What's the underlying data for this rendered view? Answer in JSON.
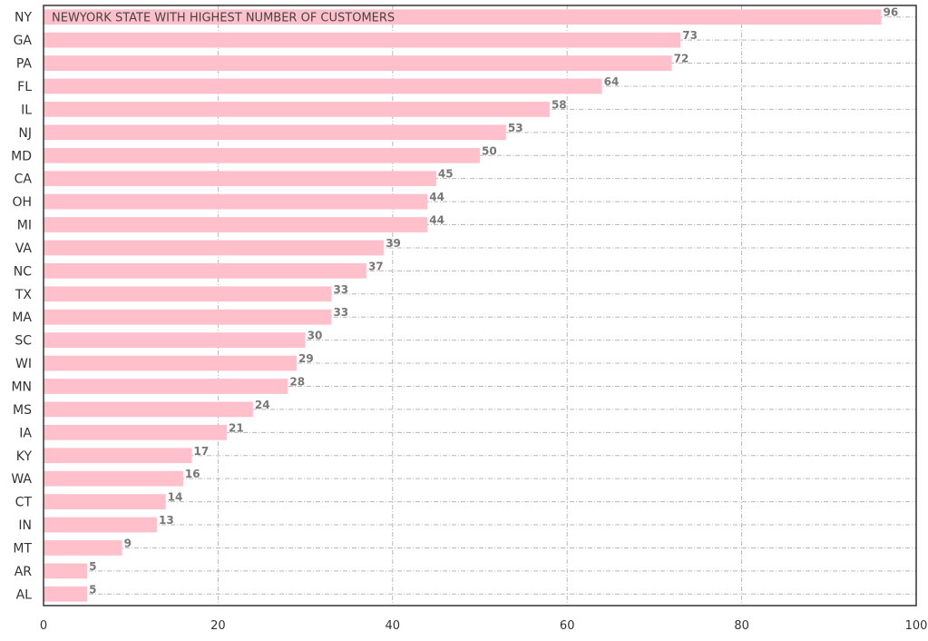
{
  "chart_data": {
    "type": "bar",
    "orientation": "horizontal",
    "categories": [
      "NY",
      "GA",
      "PA",
      "FL",
      "IL",
      "NJ",
      "MD",
      "CA",
      "OH",
      "MI",
      "VA",
      "NC",
      "TX",
      "MA",
      "SC",
      "WI",
      "MN",
      "MS",
      "IA",
      "KY",
      "WA",
      "CT",
      "IN",
      "MT",
      "AR",
      "AL"
    ],
    "values": [
      96,
      73,
      72,
      64,
      58,
      53,
      50,
      45,
      44,
      44,
      39,
      37,
      33,
      33,
      30,
      29,
      28,
      24,
      21,
      17,
      16,
      14,
      13,
      9,
      5,
      5
    ],
    "annotation": "NEWYORK STATE WITH HIGHEST NUMBER OF CUSTOMERS",
    "title": "",
    "xlabel": "",
    "ylabel": "",
    "xlim": [
      0,
      100
    ],
    "xticks": [
      0,
      20,
      40,
      60,
      80,
      100
    ],
    "grid": true,
    "legend": "none",
    "colors": {
      "bar": "#ffc0cb",
      "value_label": "#777777",
      "axis": "#333333",
      "grid": "#b8b8b8"
    }
  }
}
